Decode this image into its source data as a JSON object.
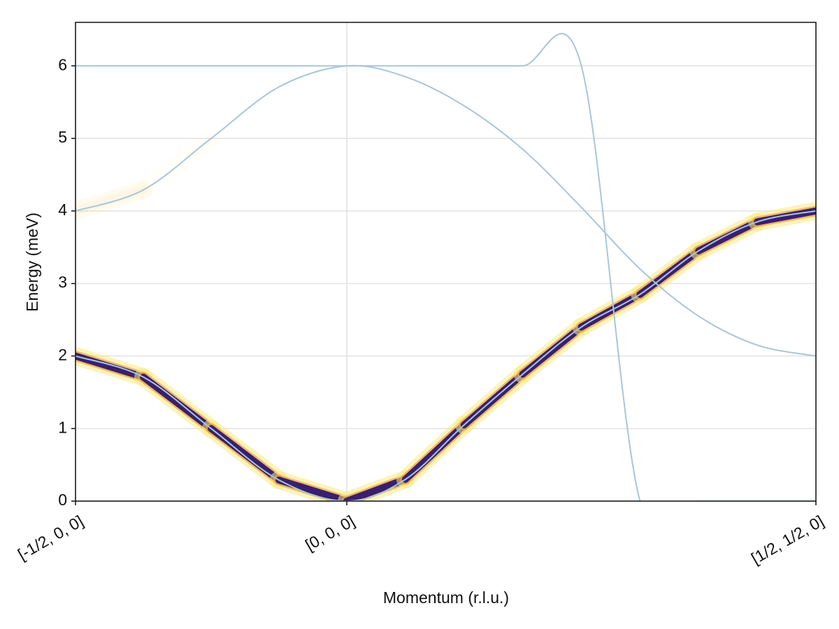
{
  "chart_data": {
    "type": "line",
    "xlabel": "Momentum (r.l.u.)",
    "ylabel": "Energy (meV)",
    "x": [
      0,
      0.0916,
      0.1832,
      0.2748,
      0.3664,
      0.4456,
      0.5248,
      0.604,
      0.6832,
      0.7624,
      0.8416,
      0.9208,
      1.0
    ],
    "series": [
      {
        "color": "#a9c6d8",
        "values": [
          2,
          1.71,
          1.0,
          0.29,
          0,
          0.3,
          1.05,
          1.75,
          2.4,
          2.85,
          3.45,
          3.85,
          4.0
        ],
        "intensity": [
          1,
          1,
          1,
          1,
          1,
          1,
          1,
          1,
          1,
          1,
          1,
          1,
          1
        ]
      },
      {
        "color": "#a9c6d8",
        "values": [
          4,
          4.29,
          5.0,
          5.71,
          6,
          5.85,
          5.45,
          4.85,
          4.05,
          3.2,
          2.55,
          2.15,
          2.0
        ],
        "intensity": [
          0.3,
          0.15,
          0,
          0,
          0,
          0,
          0,
          0,
          0,
          0,
          0,
          0,
          0
        ]
      },
      {
        "color": "#a9c6d8",
        "values": [
          6,
          6,
          6,
          6,
          6,
          6,
          6,
          6,
          6,
          0.0,
          0,
          0,
          0
        ],
        "intensity": [
          0,
          0,
          0,
          0,
          0,
          0,
          0,
          0,
          0,
          0,
          0,
          0,
          0
        ]
      }
    ],
    "xlim": [
      0,
      1
    ],
    "ylim": [
      0,
      6.6
    ],
    "xticks": [
      {
        "value": 0,
        "label": "[-1/2, 0, 0]"
      },
      {
        "value": 0.3664,
        "label": "[0, 0, 0]"
      },
      {
        "value": 1,
        "label": "[1/2, 1/2, 0]"
      }
    ],
    "yticks": [
      0,
      1,
      2,
      3,
      4,
      5,
      6
    ],
    "grid": true
  }
}
